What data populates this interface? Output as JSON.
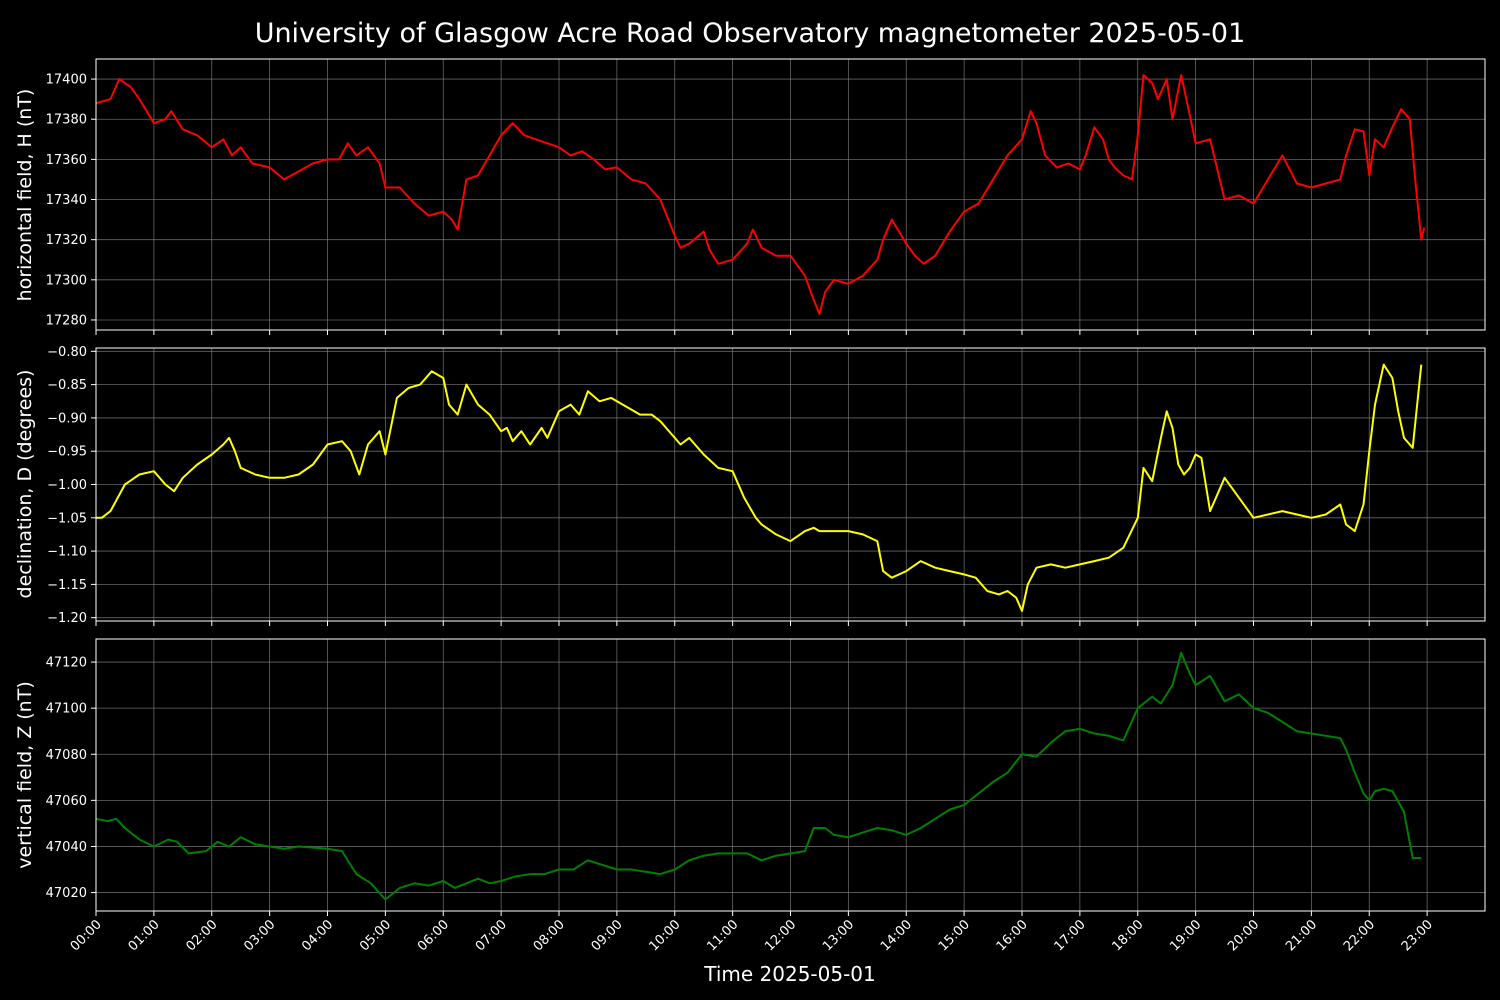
{
  "title": "University of Glasgow Acre Road Observatory magnetometer 2025-05-01",
  "xlabel": "Time 2025-05-01",
  "x_tick_labels": [
    "00:00",
    "01:00",
    "02:00",
    "03:00",
    "04:00",
    "05:00",
    "06:00",
    "07:00",
    "08:00",
    "09:00",
    "10:00",
    "11:00",
    "12:00",
    "13:00",
    "14:00",
    "15:00",
    "16:00",
    "17:00",
    "18:00",
    "19:00",
    "20:00",
    "21:00",
    "22:00",
    "23:00"
  ],
  "colors": {
    "background": "#000000",
    "grid": "#808080",
    "axes": "#ffffff",
    "H": "#ff0000",
    "D": "#ffff00",
    "Z": "#008000"
  },
  "chart_data": [
    {
      "type": "line",
      "key": "H",
      "ylabel": "horizontal field, H (nT)",
      "xlim": [
        0,
        24
      ],
      "ylim": [
        17275,
        17410
      ],
      "yticks": [
        17280,
        17300,
        17320,
        17340,
        17360,
        17380,
        17400
      ],
      "ytick_labels": [
        "17280",
        "17300",
        "17320",
        "17340",
        "17360",
        "17380",
        "17400"
      ],
      "grid": true,
      "series": [
        {
          "color": "#ff0000",
          "x": [
            0,
            0.25,
            0.4,
            0.6,
            0.75,
            1.0,
            1.2,
            1.3,
            1.5,
            1.75,
            2.0,
            2.2,
            2.35,
            2.5,
            2.7,
            3.0,
            3.25,
            3.5,
            3.75,
            4.0,
            4.2,
            4.35,
            4.5,
            4.7,
            4.9,
            5.0,
            5.25,
            5.5,
            5.75,
            6.0,
            6.15,
            6.25,
            6.4,
            6.6,
            6.8,
            7.0,
            7.2,
            7.4,
            7.6,
            7.8,
            8.0,
            8.2,
            8.4,
            8.6,
            8.8,
            9.0,
            9.25,
            9.5,
            9.75,
            10.0,
            10.1,
            10.25,
            10.5,
            10.6,
            10.75,
            11.0,
            11.25,
            11.35,
            11.5,
            11.75,
            12.0,
            12.25,
            12.4,
            12.5,
            12.6,
            12.75,
            13.0,
            13.25,
            13.5,
            13.6,
            13.75,
            14.0,
            14.15,
            14.3,
            14.5,
            14.75,
            15.0,
            15.25,
            15.5,
            15.75,
            16.0,
            16.15,
            16.25,
            16.4,
            16.6,
            16.8,
            17.0,
            17.1,
            17.25,
            17.4,
            17.5,
            17.6,
            17.75,
            17.9,
            18.0,
            18.1,
            18.25,
            18.35,
            18.5,
            18.6,
            18.75,
            18.9,
            19.0,
            19.25,
            19.5,
            19.75,
            20.0,
            20.25,
            20.5,
            20.75,
            21.0,
            21.25,
            21.5,
            21.6,
            21.75,
            21.9,
            22.0,
            22.1,
            22.25,
            22.4,
            22.55,
            22.7,
            22.8,
            22.9,
            22.95
          ],
          "y": [
            17388,
            17390,
            17400,
            17396,
            17390,
            17378,
            17380,
            17384,
            17375,
            17372,
            17366,
            17370,
            17362,
            17366,
            17358,
            17356,
            17350,
            17354,
            17358,
            17360,
            17360,
            17368,
            17362,
            17366,
            17358,
            17346,
            17346,
            17338,
            17332,
            17334,
            17330,
            17325,
            17350,
            17352,
            17362,
            17372,
            17378,
            17372,
            17370,
            17368,
            17366,
            17362,
            17364,
            17360,
            17355,
            17356,
            17350,
            17348,
            17340,
            17322,
            17316,
            17318,
            17324,
            17315,
            17308,
            17310,
            17318,
            17325,
            17316,
            17312,
            17312,
            17302,
            17290,
            17283,
            17294,
            17300,
            17298,
            17302,
            17310,
            17320,
            17330,
            17318,
            17312,
            17308,
            17312,
            17324,
            17334,
            17338,
            17350,
            17362,
            17370,
            17384,
            17378,
            17362,
            17356,
            17358,
            17355,
            17362,
            17376,
            17370,
            17360,
            17356,
            17352,
            17350,
            17372,
            17402,
            17398,
            17390,
            17400,
            17380,
            17402,
            17382,
            17368,
            17370,
            17340,
            17342,
            17338,
            17350,
            17362,
            17348,
            17346,
            17348,
            17350,
            17362,
            17375,
            17374,
            17352,
            17370,
            17366,
            17376,
            17385,
            17380,
            17348,
            17320,
            17326
          ]
        }
      ]
    },
    {
      "type": "line",
      "key": "D",
      "ylabel": "declination, D (degrees)",
      "xlim": [
        0,
        24
      ],
      "ylim": [
        -1.205,
        -0.795
      ],
      "yticks": [
        -1.2,
        -1.15,
        -1.1,
        -1.05,
        -1.0,
        -0.95,
        -0.9,
        -0.85,
        -0.8
      ],
      "ytick_labels": [
        "−1.20",
        "−1.15",
        "−1.10",
        "−1.05",
        "−1.00",
        "−0.95",
        "−0.90",
        "−0.85",
        "−0.80"
      ],
      "grid": true,
      "series": [
        {
          "color": "#ffff00",
          "x": [
            0,
            0.1,
            0.25,
            0.5,
            0.75,
            1.0,
            1.2,
            1.35,
            1.5,
            1.75,
            2.0,
            2.2,
            2.3,
            2.4,
            2.5,
            2.75,
            3.0,
            3.25,
            3.5,
            3.75,
            4.0,
            4.25,
            4.4,
            4.55,
            4.7,
            4.9,
            5.0,
            5.2,
            5.4,
            5.6,
            5.8,
            6.0,
            6.1,
            6.25,
            6.4,
            6.6,
            6.8,
            7.0,
            7.1,
            7.2,
            7.35,
            7.5,
            7.7,
            7.8,
            8.0,
            8.2,
            8.35,
            8.5,
            8.7,
            8.9,
            9.0,
            9.2,
            9.4,
            9.6,
            9.75,
            10.0,
            10.1,
            10.25,
            10.5,
            10.75,
            11.0,
            11.2,
            11.4,
            11.5,
            11.75,
            12.0,
            12.25,
            12.4,
            12.5,
            12.75,
            13.0,
            13.25,
            13.5,
            13.6,
            13.75,
            14.0,
            14.25,
            14.5,
            14.75,
            15.0,
            15.2,
            15.4,
            15.6,
            15.75,
            15.9,
            16.0,
            16.1,
            16.25,
            16.5,
            16.75,
            17.0,
            17.25,
            17.5,
            17.75,
            18.0,
            18.1,
            18.25,
            18.4,
            18.5,
            18.6,
            18.7,
            18.8,
            18.9,
            19.0,
            19.1,
            19.25,
            19.4,
            19.5,
            19.75,
            20.0,
            20.25,
            20.5,
            20.75,
            21.0,
            21.25,
            21.5,
            21.6,
            21.75,
            21.9,
            22.0,
            22.1,
            22.25,
            22.4,
            22.5,
            22.6,
            22.75,
            22.9
          ],
          "y": [
            -1.05,
            -1.05,
            -1.04,
            -1.0,
            -0.985,
            -0.98,
            -1.0,
            -1.01,
            -0.99,
            -0.97,
            -0.955,
            -0.94,
            -0.93,
            -0.95,
            -0.975,
            -0.985,
            -0.99,
            -0.99,
            -0.985,
            -0.97,
            -0.94,
            -0.935,
            -0.95,
            -0.985,
            -0.94,
            -0.92,
            -0.955,
            -0.87,
            -0.855,
            -0.85,
            -0.83,
            -0.84,
            -0.88,
            -0.895,
            -0.85,
            -0.88,
            -0.895,
            -0.92,
            -0.915,
            -0.935,
            -0.92,
            -0.94,
            -0.915,
            -0.93,
            -0.89,
            -0.88,
            -0.895,
            -0.86,
            -0.875,
            -0.87,
            -0.875,
            -0.885,
            -0.895,
            -0.895,
            -0.905,
            -0.93,
            -0.94,
            -0.93,
            -0.955,
            -0.975,
            -0.98,
            -1.02,
            -1.05,
            -1.06,
            -1.075,
            -1.085,
            -1.07,
            -1.065,
            -1.07,
            -1.07,
            -1.07,
            -1.075,
            -1.085,
            -1.13,
            -1.14,
            -1.13,
            -1.115,
            -1.125,
            -1.13,
            -1.135,
            -1.14,
            -1.16,
            -1.165,
            -1.16,
            -1.17,
            -1.19,
            -1.15,
            -1.125,
            -1.12,
            -1.125,
            -1.12,
            -1.115,
            -1.11,
            -1.095,
            -1.05,
            -0.975,
            -0.995,
            -0.93,
            -0.89,
            -0.915,
            -0.97,
            -0.985,
            -0.975,
            -0.955,
            -0.96,
            -1.04,
            -1.01,
            -0.99,
            -1.02,
            -1.05,
            -1.045,
            -1.04,
            -1.045,
            -1.05,
            -1.045,
            -1.03,
            -1.06,
            -1.07,
            -1.03,
            -0.95,
            -0.88,
            -0.82,
            -0.84,
            -0.89,
            -0.93,
            -0.945,
            -0.82
          ]
        }
      ]
    },
    {
      "type": "line",
      "key": "Z",
      "ylabel": "vertical field, Z (nT)",
      "xlim": [
        0,
        24
      ],
      "ylim": [
        47012,
        47130
      ],
      "yticks": [
        47020,
        47040,
        47060,
        47080,
        47100,
        47120
      ],
      "ytick_labels": [
        "47020",
        "47040",
        "47060",
        "47080",
        "47100",
        "47120"
      ],
      "grid": true,
      "series": [
        {
          "color": "#008000",
          "x": [
            0,
            0.2,
            0.35,
            0.5,
            0.75,
            1.0,
            1.25,
            1.4,
            1.6,
            1.9,
            2.1,
            2.3,
            2.5,
            2.75,
            3.0,
            3.25,
            3.5,
            4.0,
            4.25,
            4.5,
            4.75,
            5.0,
            5.25,
            5.5,
            5.75,
            6.0,
            6.2,
            6.4,
            6.6,
            6.8,
            7.0,
            7.25,
            7.5,
            7.75,
            8.0,
            8.25,
            8.5,
            8.75,
            9.0,
            9.25,
            9.5,
            9.75,
            10.0,
            10.25,
            10.5,
            10.75,
            11.0,
            11.25,
            11.5,
            11.75,
            12.0,
            12.25,
            12.4,
            12.6,
            12.75,
            13.0,
            13.25,
            13.5,
            13.75,
            14.0,
            14.25,
            14.5,
            14.75,
            15.0,
            15.25,
            15.5,
            15.75,
            16.0,
            16.25,
            16.5,
            16.75,
            17.0,
            17.25,
            17.5,
            17.75,
            18.0,
            18.25,
            18.4,
            18.6,
            18.75,
            18.9,
            19.0,
            19.25,
            19.5,
            19.75,
            20.0,
            20.25,
            20.5,
            20.75,
            21.0,
            21.25,
            21.5,
            21.6,
            21.75,
            21.9,
            22.0,
            22.1,
            22.25,
            22.4,
            22.6,
            22.75,
            22.9
          ],
          "y": [
            47052,
            47051,
            47052,
            47048,
            47043,
            47040,
            47043,
            47042,
            47037,
            47038,
            47042,
            47040,
            47044,
            47041,
            47040,
            47039,
            47040,
            47039,
            47038,
            47028,
            47024,
            47017,
            47022,
            47024,
            47023,
            47025,
            47022,
            47024,
            47026,
            47024,
            47025,
            47027,
            47028,
            47028,
            47030,
            47030,
            47034,
            47032,
            47030,
            47030,
            47029,
            47028,
            47030,
            47034,
            47036,
            47037,
            47037,
            47037,
            47034,
            47036,
            47037,
            47038,
            47048,
            47048,
            47045,
            47044,
            47046,
            47048,
            47047,
            47045,
            47048,
            47052,
            47056,
            47058,
            47063,
            47068,
            47072,
            47080,
            47079,
            47085,
            47090,
            47091,
            47089,
            47088,
            47086,
            47100,
            47105,
            47102,
            47110,
            47124,
            47115,
            47110,
            47114,
            47103,
            47106,
            47100,
            47098,
            47094,
            47090,
            47089,
            47088,
            47087,
            47082,
            47072,
            47063,
            47060,
            47064,
            47065,
            47064,
            47055,
            47035,
            47035
          ]
        }
      ]
    }
  ]
}
